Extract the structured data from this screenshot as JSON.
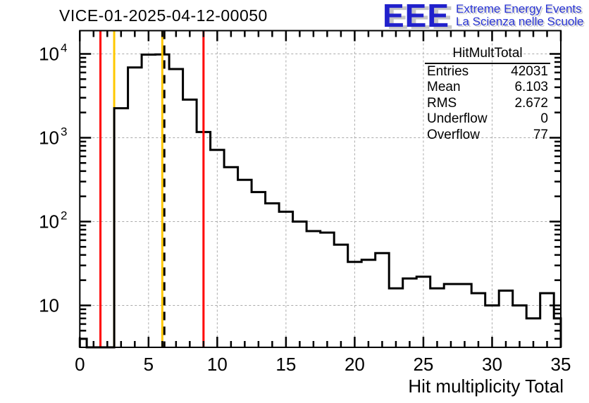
{
  "header": {
    "title": "VICE-01-2025-04-12-00050"
  },
  "logo": {
    "acronym": "EEE",
    "line1": "Extreme Energy Events",
    "line2": "La Scienza nelle Scuole",
    "accent_color": "#2121cc"
  },
  "stats_box": {
    "title": "HitMultTotal",
    "rows": [
      {
        "label": "Entries",
        "value": "42031"
      },
      {
        "label": "Mean",
        "value": "6.103"
      },
      {
        "label": "RMS",
        "value": "2.672"
      },
      {
        "label": "Underflow",
        "value": "0"
      },
      {
        "label": "Overflow",
        "value": "77"
      }
    ]
  },
  "chart_data": {
    "type": "bar",
    "style": "step-histogram",
    "title": "VICE-01-2025-04-12-00050",
    "xlabel": "Hit multiplicity Total",
    "ylabel": "",
    "y_scale": "log",
    "x_range": [
      0,
      35
    ],
    "y_range": [
      3.162,
      18900
    ],
    "x_ticks_major": [
      0,
      5,
      10,
      15,
      20,
      25,
      30,
      35
    ],
    "x_minor_step": 1,
    "y_ticks_major": [
      10,
      100,
      1000,
      10000
    ],
    "grid": true,
    "legend": "none",
    "bin_width": 1,
    "bin_centers": [
      0,
      1,
      2,
      3,
      4,
      5,
      6,
      7,
      8,
      9,
      10,
      11,
      12,
      13,
      14,
      15,
      16,
      17,
      18,
      19,
      20,
      21,
      22,
      23,
      24,
      25,
      26,
      27,
      28,
      29,
      30,
      31,
      32,
      33,
      34,
      35
    ],
    "counts": [
      4,
      0,
      0,
      2250,
      6900,
      9800,
      9850,
      6600,
      2850,
      1170,
      715,
      445,
      315,
      225,
      165,
      131,
      100,
      77,
      74,
      53,
      33,
      35,
      42,
      16,
      21,
      22,
      16,
      18,
      18,
      14,
      10,
      15,
      10,
      7,
      14,
      7
    ],
    "line_color": "#000000",
    "grid_color": "#aaaaaa",
    "marker_lines": [
      {
        "x": 1.5,
        "color": "#ff0000",
        "style": "solid",
        "layer": "under"
      },
      {
        "x": 2.5,
        "color": "#ffc800",
        "style": "solid",
        "layer": "under"
      },
      {
        "x": 6.0,
        "color": "#ffc800",
        "style": "solid",
        "layer": "over"
      },
      {
        "x": 6.15,
        "color": "#000000",
        "style": "dashed",
        "layer": "over"
      },
      {
        "x": 9.0,
        "color": "#ff0000",
        "style": "solid",
        "layer": "over"
      }
    ]
  }
}
